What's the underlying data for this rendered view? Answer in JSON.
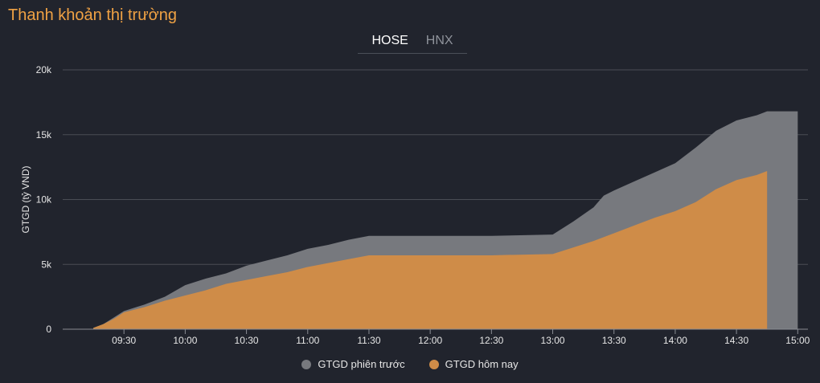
{
  "title": "Thanh khoản thị trường",
  "tabs": [
    {
      "label": "HOSE",
      "active": true
    },
    {
      "label": "HNX",
      "active": false
    }
  ],
  "colors": {
    "accent": "#f0a244",
    "previous": "#77797e",
    "today": "#cf8c48",
    "grid": "#4a4d55",
    "axis_text": "#e6e6e6"
  },
  "chart_data": {
    "type": "area",
    "title": "",
    "xlabel": "",
    "ylabel": "GTGD (tỷ VND)",
    "ylim": [
      0,
      20000
    ],
    "yticks": [
      0,
      5000,
      10000,
      15000,
      20000
    ],
    "ytick_labels": [
      "0",
      "5k",
      "10k",
      "15k",
      "20k"
    ],
    "xticks": [
      "09:30",
      "10:00",
      "10:30",
      "11:00",
      "11:30",
      "12:00",
      "12:30",
      "13:00",
      "13:30",
      "14:00",
      "14:30",
      "15:00"
    ],
    "grid": true,
    "legend_position": "bottom",
    "series": [
      {
        "name": "GTGD phiên trước",
        "color": "#77797e",
        "points": [
          [
            "09:15",
            100
          ],
          [
            "09:20",
            400
          ],
          [
            "09:25",
            900
          ],
          [
            "09:30",
            1400
          ],
          [
            "09:40",
            1900
          ],
          [
            "09:50",
            2500
          ],
          [
            "10:00",
            3400
          ],
          [
            "10:10",
            3900
          ],
          [
            "10:20",
            4300
          ],
          [
            "10:30",
            4900
          ],
          [
            "10:40",
            5300
          ],
          [
            "10:50",
            5700
          ],
          [
            "11:00",
            6200
          ],
          [
            "11:10",
            6500
          ],
          [
            "11:20",
            6900
          ],
          [
            "11:30",
            7200
          ],
          [
            "12:00",
            7200
          ],
          [
            "12:30",
            7200
          ],
          [
            "13:00",
            7300
          ],
          [
            "13:10",
            8300
          ],
          [
            "13:20",
            9400
          ],
          [
            "13:25",
            10300
          ],
          [
            "13:30",
            10700
          ],
          [
            "13:40",
            11400
          ],
          [
            "13:50",
            12100
          ],
          [
            "14:00",
            12800
          ],
          [
            "14:10",
            14000
          ],
          [
            "14:20",
            15300
          ],
          [
            "14:30",
            16100
          ],
          [
            "14:40",
            16500
          ],
          [
            "14:45",
            16800
          ],
          [
            "15:00",
            16800
          ]
        ]
      },
      {
        "name": "GTGD hôm nay",
        "color": "#cf8c48",
        "points": [
          [
            "09:15",
            100
          ],
          [
            "09:20",
            400
          ],
          [
            "09:25",
            800
          ],
          [
            "09:30",
            1300
          ],
          [
            "09:40",
            1700
          ],
          [
            "09:50",
            2200
          ],
          [
            "10:00",
            2600
          ],
          [
            "10:10",
            3000
          ],
          [
            "10:20",
            3500
          ],
          [
            "10:30",
            3800
          ],
          [
            "10:40",
            4100
          ],
          [
            "10:50",
            4400
          ],
          [
            "11:00",
            4800
          ],
          [
            "11:10",
            5100
          ],
          [
            "11:20",
            5400
          ],
          [
            "11:30",
            5700
          ],
          [
            "12:00",
            5700
          ],
          [
            "12:30",
            5700
          ],
          [
            "13:00",
            5800
          ],
          [
            "13:10",
            6300
          ],
          [
            "13:20",
            6800
          ],
          [
            "13:30",
            7400
          ],
          [
            "13:40",
            8000
          ],
          [
            "13:50",
            8600
          ],
          [
            "14:00",
            9100
          ],
          [
            "14:10",
            9800
          ],
          [
            "14:20",
            10800
          ],
          [
            "14:30",
            11500
          ],
          [
            "14:40",
            11900
          ],
          [
            "14:45",
            12200
          ]
        ]
      }
    ]
  }
}
